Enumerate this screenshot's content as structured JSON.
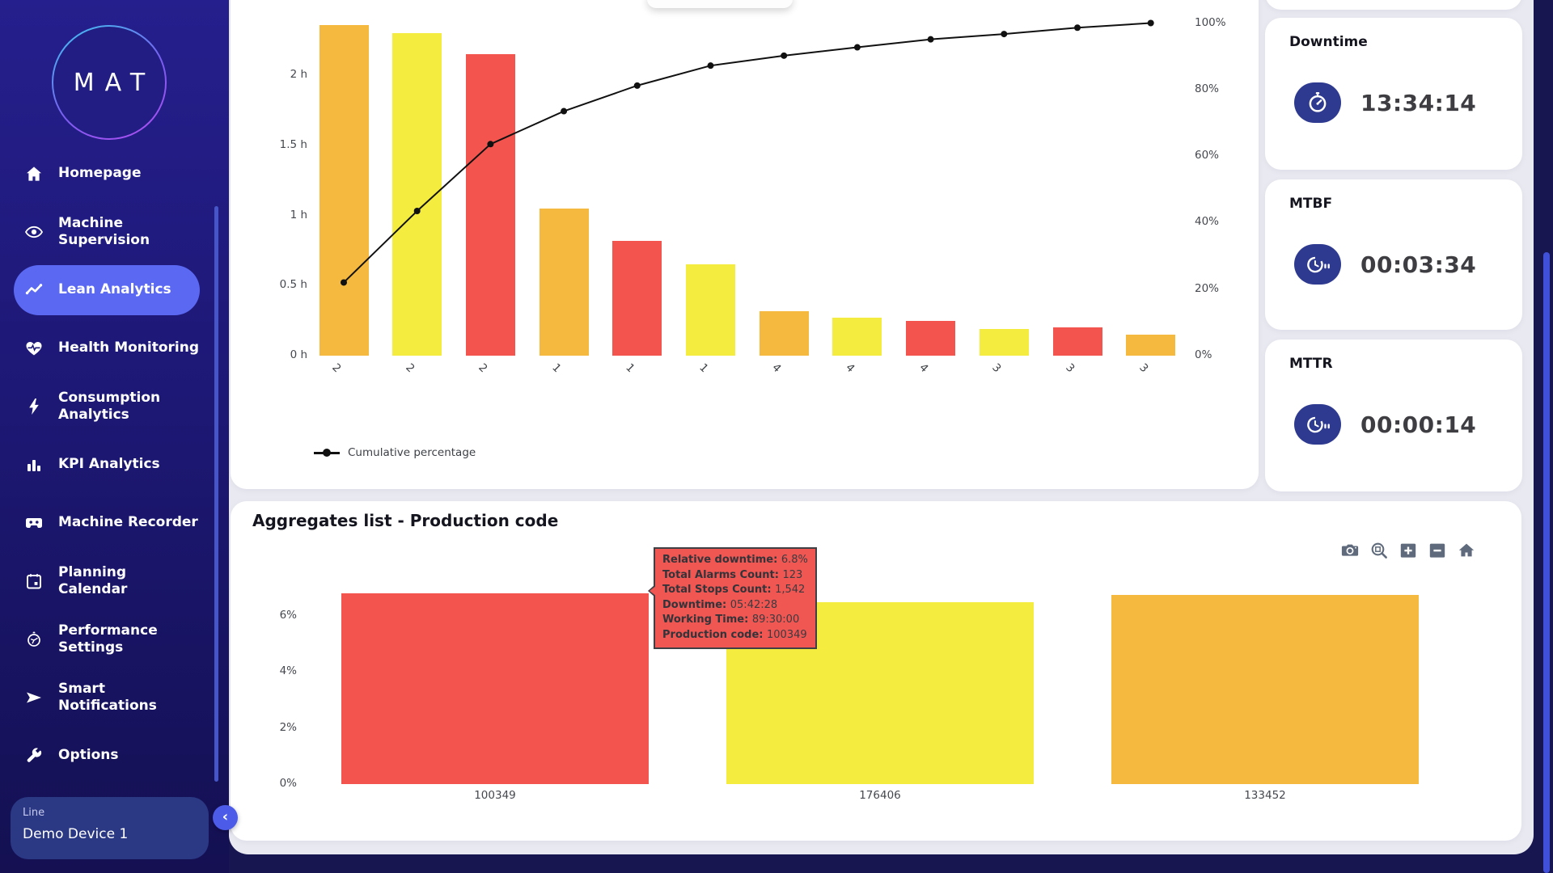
{
  "colors": {
    "bar_red": "#f4544e",
    "bar_yellow": "#f4ed3f",
    "bar_orange": "#f6b93f",
    "accent": "#5a68f2",
    "icon_badge": "#2e3a90",
    "tooltip_bg": "#f15752",
    "line": "#111111"
  },
  "sidebar": {
    "logo": "MAT",
    "items": [
      {
        "label": "Homepage",
        "icon": "home-icon",
        "active": false
      },
      {
        "label": "Machine Supervision",
        "icon": "eye-icon",
        "active": false
      },
      {
        "label": "Lean Analytics",
        "icon": "trend-icon",
        "active": true
      },
      {
        "label": "Health Monitoring",
        "icon": "heart-pulse-icon",
        "active": false
      },
      {
        "label": "Consumption Analytics",
        "icon": "bolt-icon",
        "active": false
      },
      {
        "label": "KPI Analytics",
        "icon": "bar-chart-icon",
        "active": false
      },
      {
        "label": "Machine Recorder",
        "icon": "cassette-icon",
        "active": false
      },
      {
        "label": "Planning Calendar",
        "icon": "calendar-icon",
        "active": false
      },
      {
        "label": "Performance Settings",
        "icon": "gauge-icon",
        "active": false
      },
      {
        "label": "Smart Notifications",
        "icon": "send-icon",
        "active": false
      },
      {
        "label": "Options",
        "icon": "wrench-icon",
        "active": false
      }
    ],
    "device_selector": {
      "label": "Line",
      "value": "Demo Device 1"
    }
  },
  "chart_data": [
    {
      "id": "pareto",
      "type": "bar",
      "title": "",
      "categories": [
        "2",
        "2",
        "2",
        "1",
        "1",
        "1",
        "4",
        "4",
        "4",
        "3",
        "3",
        "3"
      ],
      "bar_values_hours": [
        2.36,
        2.3,
        2.15,
        1.05,
        0.82,
        0.65,
        0.32,
        0.27,
        0.25,
        0.19,
        0.2,
        0.15
      ],
      "bar_colors": [
        "orange",
        "yellow",
        "red",
        "orange",
        "red",
        "yellow",
        "orange",
        "yellow",
        "red",
        "yellow",
        "red",
        "orange"
      ],
      "series": [
        {
          "name": "Cumulative percentage",
          "type": "line",
          "values_pct": [
            22,
            43.5,
            63.6,
            73.5,
            81.2,
            87.2,
            90.2,
            92.7,
            95.1,
            96.7,
            98.6,
            100
          ]
        }
      ],
      "yaxis_left": {
        "ticks": [
          "0 h",
          "0.5 h",
          "1 h",
          "1.5 h",
          "2 h"
        ],
        "range_hours": [
          0,
          2.55
        ]
      },
      "yaxis_right": {
        "ticks": [
          "0%",
          "20%",
          "40%",
          "60%",
          "80%",
          "100%"
        ],
        "range_pct": [
          0,
          107
        ]
      },
      "legend": [
        {
          "name": "Cumulative percentage",
          "marker": "line-dot"
        }
      ],
      "legend_position": "bottom-left",
      "grid": false
    },
    {
      "id": "aggregates",
      "type": "bar",
      "title": "Aggregates list - Production code",
      "categories": [
        "100349",
        "176406",
        "133452"
      ],
      "values_pct": [
        6.8,
        6.5,
        6.75
      ],
      "bar_colors": [
        "red",
        "yellow",
        "orange"
      ],
      "yaxis": {
        "ticks": [
          "0%",
          "2%",
          "4%",
          "6%"
        ],
        "range_pct": [
          0,
          7.2
        ]
      },
      "xlabel": "",
      "ylabel": "",
      "grid": false
    }
  ],
  "tooltip": {
    "separator": ": ",
    "rows": [
      {
        "label": "Relative downtime",
        "value": "6.8%"
      },
      {
        "label": "Total Alarms Count",
        "value": "123"
      },
      {
        "label": "Total Stops Count",
        "value": "1,542"
      },
      {
        "label": "Downtime",
        "value": "05:42:28"
      },
      {
        "label": "Working Time",
        "value": "89:30:00"
      },
      {
        "label": "Production code",
        "value": "100349"
      }
    ]
  },
  "modebar": {
    "icons": [
      "camera-icon",
      "zoom-box-icon",
      "zoom-in-icon",
      "zoom-out-icon",
      "reset-home-icon"
    ]
  },
  "kpi_cards": [
    {
      "title": "Downtime",
      "value": "13:34:14",
      "icon": "stopwatch-icon"
    },
    {
      "title": "MTBF",
      "value": "00:03:34",
      "icon": "clock-pause-icon"
    },
    {
      "title": "MTTR",
      "value": "00:00:14",
      "icon": "clock-pause-icon"
    }
  ]
}
